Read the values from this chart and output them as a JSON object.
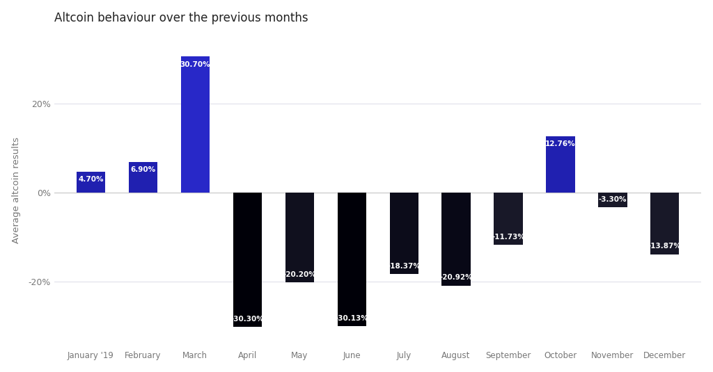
{
  "title": "Altcoin behaviour over the previous months",
  "categories": [
    "January '19",
    "February",
    "March",
    "April",
    "May",
    "June",
    "July",
    "August",
    "September",
    "October",
    "November",
    "December"
  ],
  "values": [
    4.7,
    6.9,
    30.7,
    -30.3,
    -20.2,
    -30.13,
    -18.37,
    -20.92,
    -11.73,
    12.76,
    -3.3,
    -13.87
  ],
  "bar_colors": [
    "#2020b0",
    "#2020b0",
    "#2828c8",
    "#000008",
    "#10101e",
    "#000008",
    "#0c0c1a",
    "#080816",
    "#181828",
    "#2020b0",
    "#181828",
    "#181828"
  ],
  "ylabel": "Average altcoin results",
  "ylim": [
    -35,
    36
  ],
  "yticks": [
    -20,
    0,
    20
  ],
  "plot_bg_color": "#ffffff",
  "grid_color": "#e0e0ea",
  "text_color": "#ffffff",
  "title_color": "#222222",
  "label_color": "#777777",
  "bar_width": 0.55
}
